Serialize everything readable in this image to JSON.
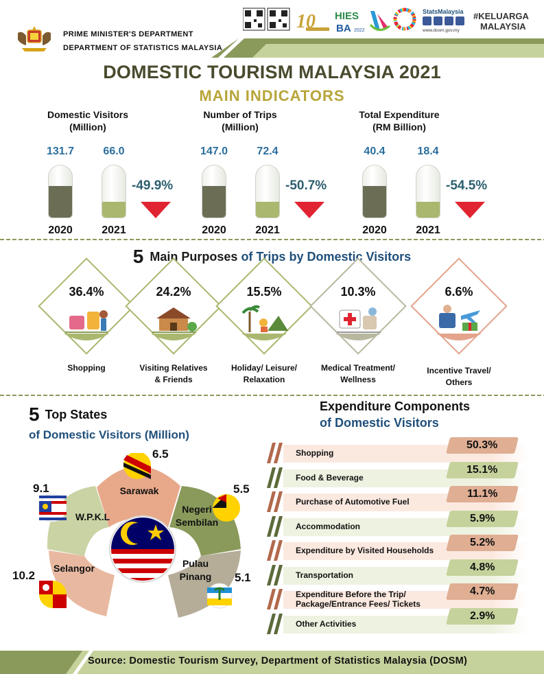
{
  "header": {
    "dept_line1": "PRIME MINISTER'S DEPARTMENT",
    "dept_line2": "DEPARTMENT OF STATISTICS MALAYSIA",
    "logos": {
      "anniversary": "10",
      "hies_line1": "HIES",
      "hies_line2": "BA",
      "hies_year": "2022",
      "stats_brand": "StatsMalaysia",
      "website": "www.dosm.gov.my",
      "keluarga_line1": "#KELUARGA",
      "keluarga_line2": "MALAYSIA"
    }
  },
  "title": "DOMESTIC TOURISM MALAYSIA 2021",
  "subtitle": "MAIN  INDICATORS",
  "indicators": [
    {
      "title_line1": "Domestic  Visitors",
      "title_line2": "(Million)",
      "v2020": "131.7",
      "v2021": "66.0",
      "change": "-49.9%",
      "y2020": "2020",
      "y2021": "2021",
      "fill2020": 0.6,
      "fill2021": 0.3
    },
    {
      "title_line1": "Number of Trips",
      "title_line2": "(Million)",
      "v2020": "147.0",
      "v2021": "72.4",
      "change": "-50.7%",
      "y2020": "2020",
      "y2021": "2021",
      "fill2020": 0.6,
      "fill2021": 0.3
    },
    {
      "title_line1": "Total Expenditure",
      "title_line2": "(RM Billion)",
      "v2020": "40.4",
      "v2021": "18.4",
      "change": "-54.5%",
      "y2020": "2020",
      "y2021": "2021",
      "fill2020": 0.6,
      "fill2021": 0.3
    }
  ],
  "purposes": {
    "head_num": "5",
    "head_bold": "Main Purposes",
    "head_blue": "of Trips by Domestic Visitors",
    "items": [
      {
        "pct": "36.4%",
        "label_line1": "Shopping",
        "label_line2": "",
        "icon": "shopping-icon",
        "color": "#a9b86e"
      },
      {
        "pct": "24.2%",
        "label_line1": "Visiting Relatives",
        "label_line2": "& Friends",
        "icon": "house-icon",
        "color": "#a9b86e"
      },
      {
        "pct": "15.5%",
        "label_line1": "Holiday/ Leisure/",
        "label_line2": "Relaxation",
        "icon": "holiday-icon",
        "color": "#a9b86e"
      },
      {
        "pct": "10.3%",
        "label_line1": "Medical Treatment/",
        "label_line2": "Wellness",
        "icon": "medical-icon",
        "color": "#b8b8a0"
      },
      {
        "pct": "6.6%",
        "label_line1": "Incentive Travel/",
        "label_line2": "Others",
        "icon": "travel-icon",
        "color": "#e4a48c"
      }
    ]
  },
  "states": {
    "head_num": "5",
    "head_text": "Top States",
    "subtitle": "of Domestic Visitors (Million)",
    "items": [
      {
        "name": "Sarawak",
        "value": "6.5",
        "color": "#e8a98a"
      },
      {
        "name": "Negeri Sembilan",
        "name_line1": "Negeri",
        "name_line2": "Sembilan",
        "value": "5.5",
        "color": "#8a9a5b"
      },
      {
        "name": "Pulau Pinang",
        "name_line1": "Pulau",
        "name_line2": "Pinang",
        "value": "5.1",
        "color": "#b5ad98"
      },
      {
        "name": "Selangor",
        "value": "10.2",
        "color": "#e8b9a0"
      },
      {
        "name": "W.P.K.L",
        "value": "9.1",
        "color": "#c9d3a3"
      }
    ]
  },
  "expenditure": {
    "head_line1": "Expenditure Components",
    "head_line2": "of Domestic Visitors",
    "items": [
      {
        "label_line1": "Shopping",
        "label_line2": "",
        "pct": "50.3%",
        "bar": "#fbe9e0",
        "badge": "#dfae93",
        "slash": "#b2694c"
      },
      {
        "label_line1": "Food & Beverage",
        "label_line2": "",
        "pct": "15.1%",
        "bar": "#eef2e0",
        "badge": "#c5d29c",
        "slash": "#5c6b3a"
      },
      {
        "label_line1": "Purchase of Automotive Fuel",
        "label_line2": "",
        "pct": "11.1%",
        "bar": "#fbe9e0",
        "badge": "#dfae93",
        "slash": "#b2694c"
      },
      {
        "label_line1": "Accommodation",
        "label_line2": "",
        "pct": "5.9%",
        "bar": "#eef2e0",
        "badge": "#c5d29c",
        "slash": "#5c6b3a"
      },
      {
        "label_line1": "Expenditure by Visited Households",
        "label_line2": "",
        "pct": "5.2%",
        "bar": "#fbe9e0",
        "badge": "#dfae93",
        "slash": "#b2694c"
      },
      {
        "label_line1": "Transportation",
        "label_line2": "",
        "pct": "4.8%",
        "bar": "#eef2e0",
        "badge": "#c5d29c",
        "slash": "#5c6b3a"
      },
      {
        "label_line1": "Expenditure Before the Trip/",
        "label_line2": "Package/Entrance Fees/ Tickets",
        "pct": "4.7%",
        "bar": "#fbe9e0",
        "badge": "#dfae93",
        "slash": "#b2694c"
      },
      {
        "label_line1": "Other Activities",
        "label_line2": "",
        "pct": "2.9%",
        "bar": "#eef2e0",
        "badge": "#c5d29c",
        "slash": "#5c6b3a"
      }
    ]
  },
  "source": "Source: Domestic Tourism Survey, Department  of Statistics  Malaysia (DOSM)",
  "colors": {
    "tube_2020": "#6b6e55",
    "tube_2021": "#a9b86e",
    "down_arrow": "#e02431",
    "accent_blue": "#1f4f7a",
    "title_olive": "#4a4a2e",
    "subtitle_gold": "#b8a53a"
  }
}
